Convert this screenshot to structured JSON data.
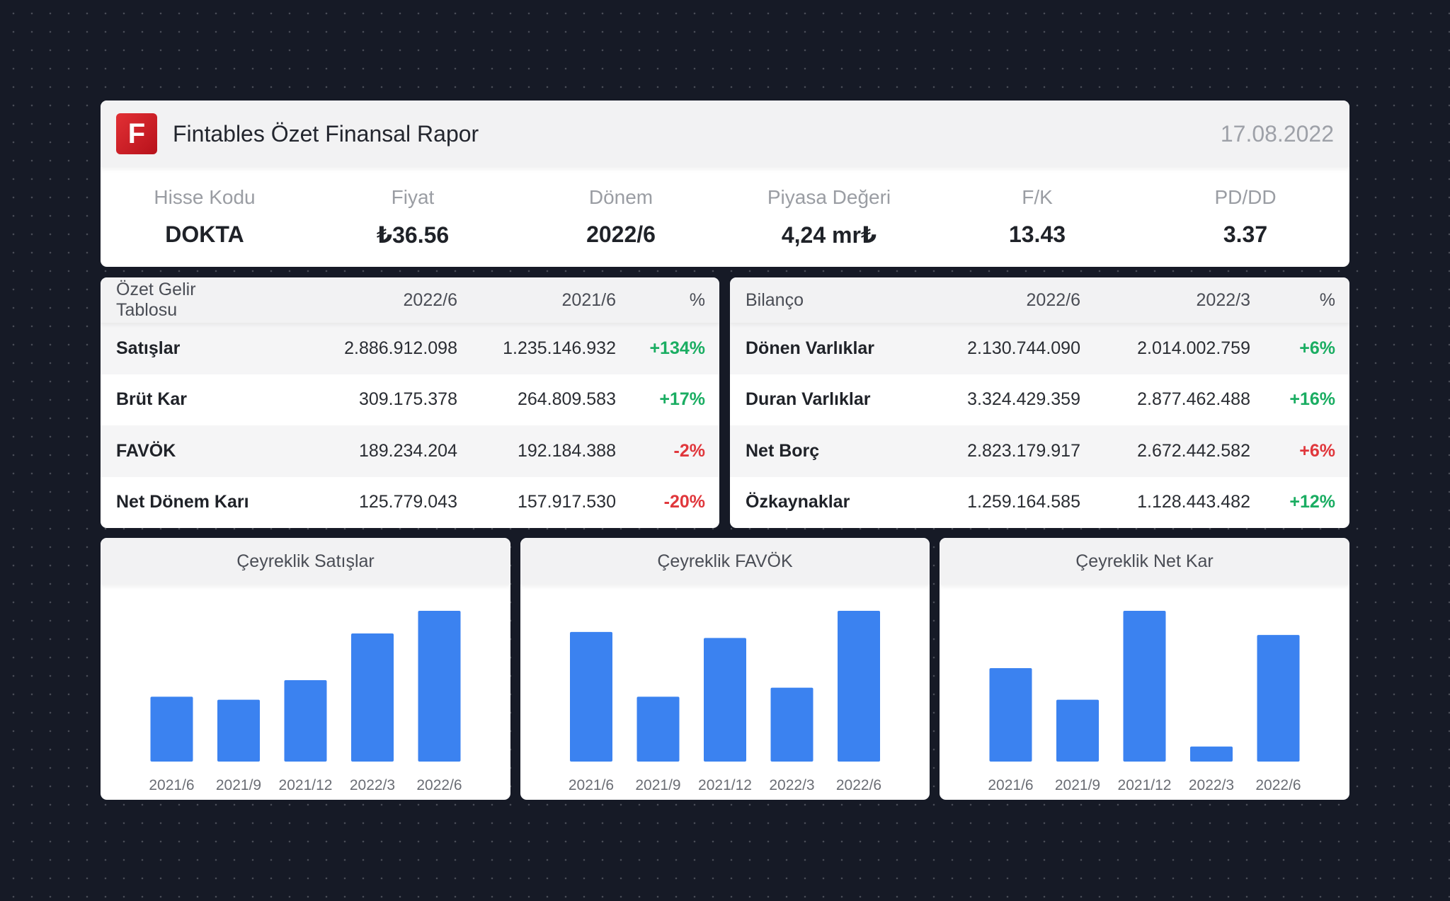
{
  "header": {
    "logo_letter": "F",
    "title": "Fintables Özet Finansal Rapor",
    "date": "17.08.2022"
  },
  "metrics": [
    {
      "label": "Hisse Kodu",
      "value": "DOKTA"
    },
    {
      "label": "Fiyat",
      "value": "₺36.56"
    },
    {
      "label": "Dönem",
      "value": "2022/6"
    },
    {
      "label": "Piyasa Değeri",
      "value": "4,24 mr₺"
    },
    {
      "label": "F/K",
      "value": "13.43"
    },
    {
      "label": "PD/DD",
      "value": "3.37"
    }
  ],
  "income": {
    "headers": [
      "Özet Gelir Tablosu",
      "2022/6",
      "2021/6",
      "%"
    ],
    "rows": [
      {
        "name": "Satışlar",
        "v1": "2.886.912.098",
        "v2": "1.235.146.932",
        "pct": "+134%"
      },
      {
        "name": "Brüt Kar",
        "v1": "309.175.378",
        "v2": "264.809.583",
        "pct": "+17%"
      },
      {
        "name": "FAVÖK",
        "v1": "189.234.204",
        "v2": "192.184.388",
        "pct": "-2%"
      },
      {
        "name": "Net Dönem Karı",
        "v1": "125.779.043",
        "v2": "157.917.530",
        "pct": "-20%"
      }
    ]
  },
  "balance": {
    "headers": [
      "Bilanço",
      "2022/6",
      "2022/3",
      "%"
    ],
    "rows": [
      {
        "name": "Dönen Varlıklar",
        "v1": "2.130.744.090",
        "v2": "2.014.002.759",
        "pct": "+6%"
      },
      {
        "name": "Duran Varlıklar",
        "v1": "3.324.429.359",
        "v2": "2.877.462.488",
        "pct": "+16%"
      },
      {
        "name": "Net Borç",
        "v1": "2.823.179.917",
        "v2": "2.672.442.582",
        "pct": "+6%"
      },
      {
        "name": "Özkaynaklar",
        "v1": "1.259.164.585",
        "v2": "1.128.443.482",
        "pct": "+12%"
      }
    ]
  },
  "colors": {
    "positive": "#1aad62",
    "negative": "#e0373c",
    "bar": "#3b82f0",
    "logo": "#c8161f"
  },
  "chart_data": [
    {
      "type": "bar",
      "title": "Çeyreklik Satışlar",
      "categories": [
        "2021/6",
        "2021/9",
        "2021/12",
        "2022/3",
        "2022/6"
      ],
      "values": [
        0.43,
        0.41,
        0.54,
        0.85,
        1.0
      ],
      "ylim": [
        0,
        1
      ],
      "grid": false
    },
    {
      "type": "bar",
      "title": "Çeyreklik FAVÖK",
      "categories": [
        "2021/6",
        "2021/9",
        "2021/12",
        "2022/3",
        "2022/6"
      ],
      "values": [
        0.86,
        0.43,
        0.82,
        0.49,
        1.0
      ],
      "ylim": [
        0,
        1
      ],
      "grid": false
    },
    {
      "type": "bar",
      "title": "Çeyreklik Net Kar",
      "categories": [
        "2021/6",
        "2021/9",
        "2021/12",
        "2022/3",
        "2022/6"
      ],
      "values": [
        0.62,
        0.41,
        1.0,
        0.1,
        0.84
      ],
      "ylim": [
        0,
        1
      ],
      "grid": false
    }
  ]
}
